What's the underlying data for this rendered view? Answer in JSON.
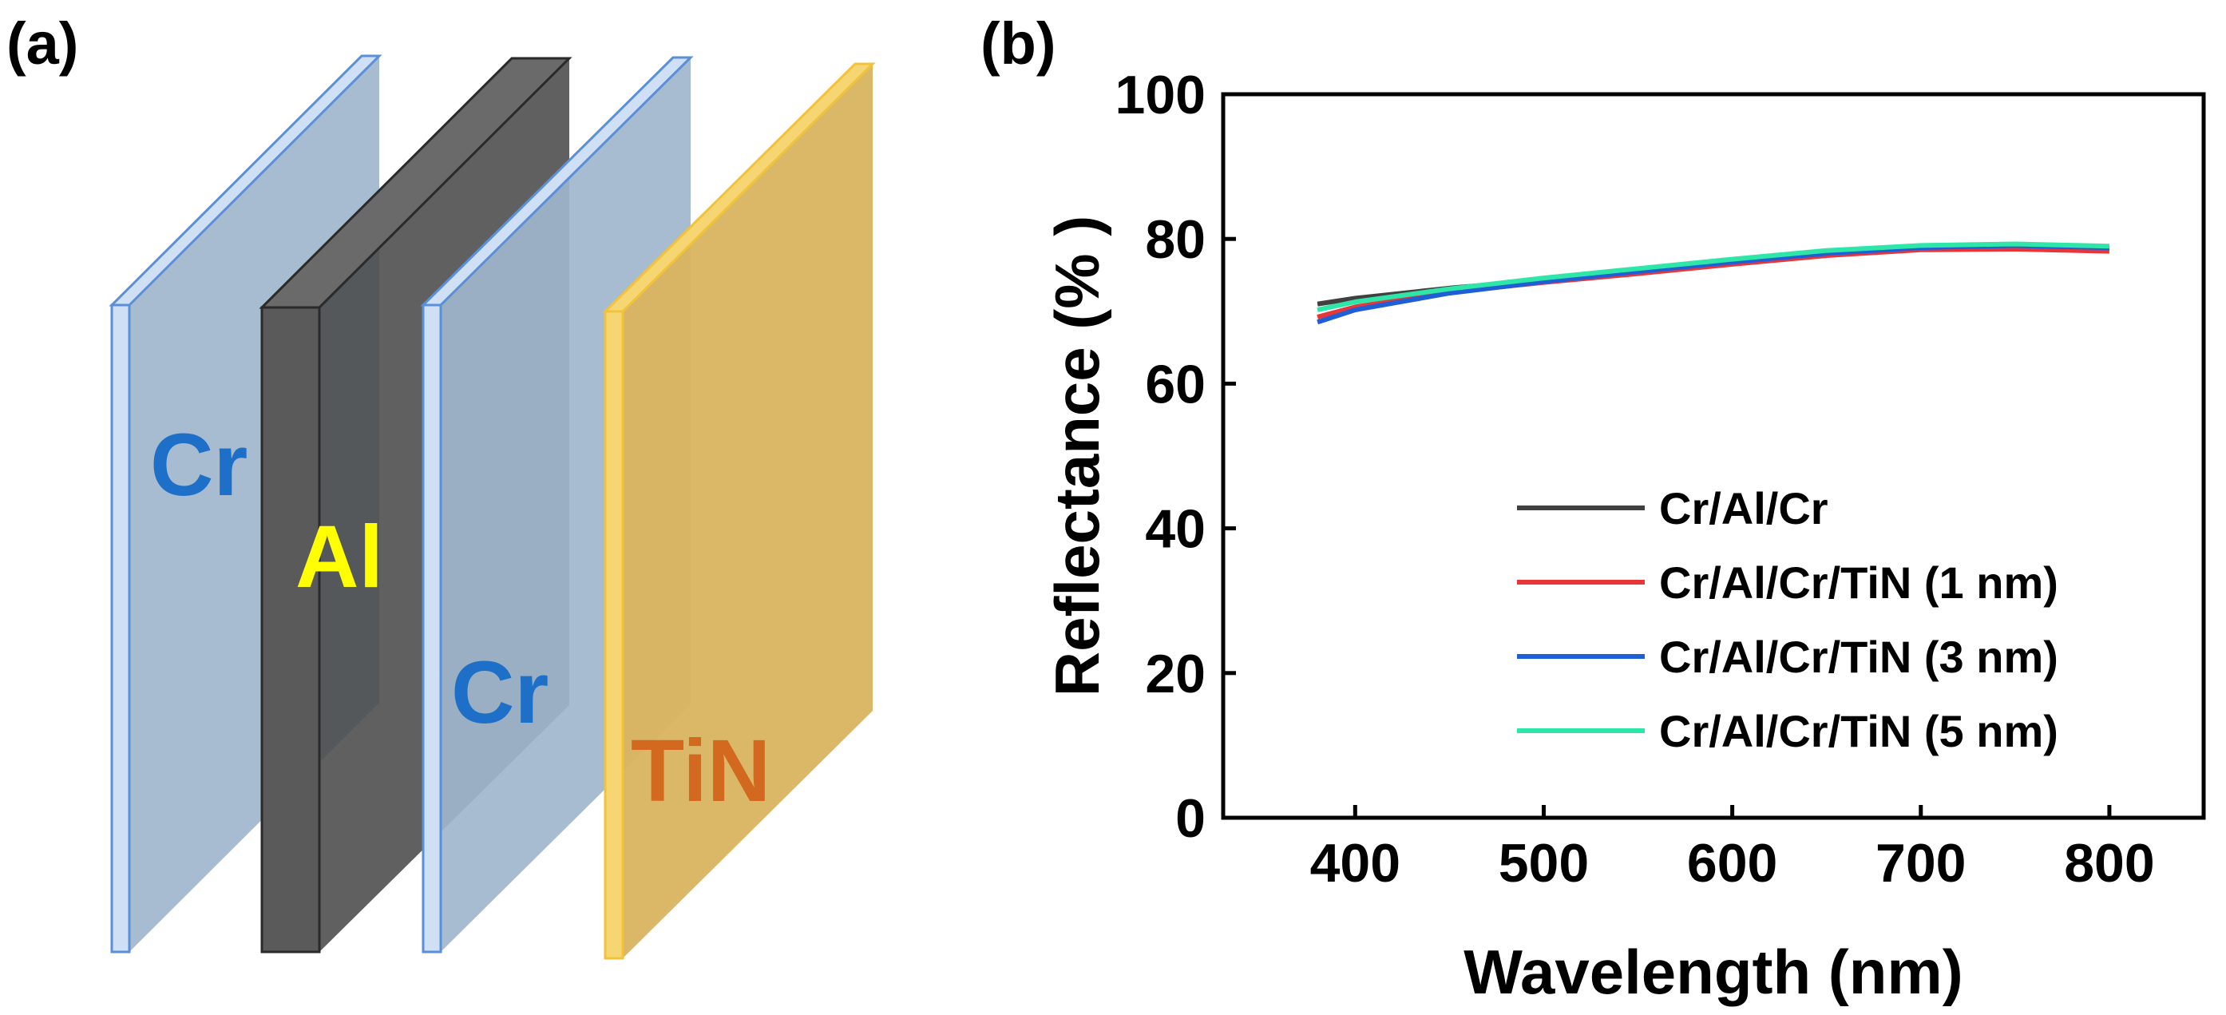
{
  "panel_a": {
    "label": "(a)",
    "layers": [
      {
        "name": "Cr",
        "face_color": "#9fb6cc",
        "edge_color": "#5b8fd8",
        "text_color": "#1e6fc8"
      },
      {
        "name": "Al",
        "face_color": "#5f5f5f",
        "edge_color": "#2a2a2a",
        "text_color": "#ffff00"
      },
      {
        "name": "Cr",
        "face_color": "#9fb6cc",
        "edge_color": "#5b8fd8",
        "text_color": "#1e6fc8"
      },
      {
        "name": "TiN",
        "face_color": "#d9b45f",
        "edge_color": "#f2c23a",
        "text_color": "#d2691e"
      }
    ]
  },
  "panel_b": {
    "label": "(b)"
  },
  "chart_data": {
    "type": "line",
    "title": "",
    "xlabel": "Wavelength (nm)",
    "ylabel": "Reflectance (% )",
    "xlim": [
      330,
      850
    ],
    "ylim": [
      0,
      100
    ],
    "xticks": [
      400,
      500,
      600,
      700,
      800
    ],
    "yticks": [
      0,
      20,
      40,
      60,
      80,
      100
    ],
    "grid": false,
    "legend_position": "bottom-right",
    "x": [
      380,
      400,
      450,
      500,
      550,
      600,
      650,
      700,
      750,
      800
    ],
    "series": [
      {
        "name": "Cr/Al/Cr",
        "color": "#404040",
        "values": [
          71.0,
          71.8,
          73.2,
          74.3,
          75.6,
          76.9,
          78.1,
          78.9,
          79.0,
          78.7
        ]
      },
      {
        "name": "Cr/Al/Cr/TiN (1 nm)",
        "color": "#e8353a",
        "values": [
          69.2,
          70.6,
          72.6,
          74.0,
          75.2,
          76.5,
          77.7,
          78.5,
          78.6,
          78.3
        ]
      },
      {
        "name": "Cr/Al/Cr/TiN (3 nm)",
        "color": "#1f5fd6",
        "values": [
          68.5,
          70.2,
          72.5,
          74.1,
          75.5,
          76.8,
          78.0,
          78.8,
          79.1,
          78.8
        ]
      },
      {
        "name": "Cr/Al/Cr/TiN (5 nm)",
        "color": "#2ee6a8",
        "values": [
          70.2,
          71.3,
          73.1,
          74.6,
          75.9,
          77.2,
          78.4,
          79.1,
          79.3,
          79.0
        ]
      }
    ]
  }
}
